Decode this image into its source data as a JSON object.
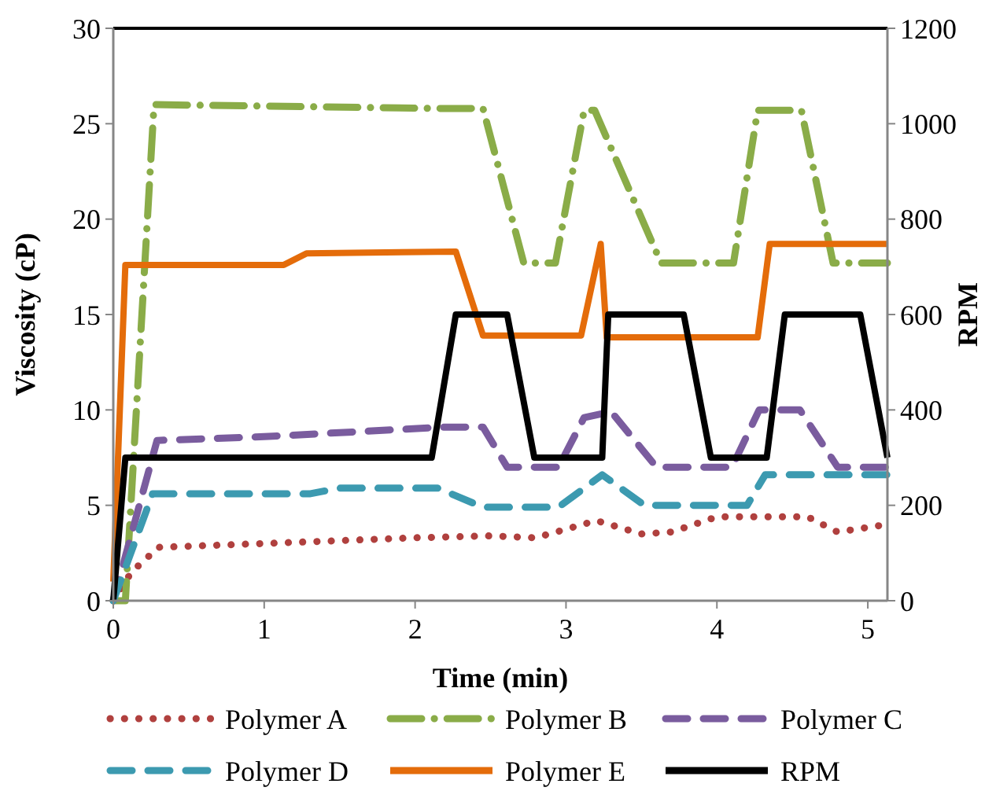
{
  "chart_data": {
    "type": "line",
    "xlabel": "Time (min)",
    "ylabel": "Viscosity (cP)",
    "y2label": "RPM",
    "xlim": [
      0,
      5.13
    ],
    "xticks": [
      0,
      1,
      2,
      3,
      4,
      5
    ],
    "ylim": [
      0,
      30
    ],
    "yticks": [
      0,
      5,
      10,
      15,
      20,
      25,
      30
    ],
    "y2lim": [
      0,
      1200
    ],
    "y2ticks": [
      0,
      200,
      400,
      600,
      800,
      1000,
      1200
    ],
    "grid": false,
    "legend": "bottom",
    "series": [
      {
        "name": "Polymer A",
        "color": "#b0403e",
        "line_style": "dotted",
        "x": [
          0,
          0.12,
          0.3,
          1,
          2,
          2.5,
          2.8,
          3.2,
          3.5,
          3.7,
          4,
          4.6,
          4.8,
          5.13
        ],
        "values": [
          0,
          1.5,
          2.8,
          3,
          3.3,
          3.4,
          3.3,
          4.2,
          3.5,
          3.6,
          4.4,
          4.4,
          3.6,
          4
        ]
      },
      {
        "name": "Polymer B",
        "color": "#8aac48",
        "line_style": "dashdot",
        "x": [
          0,
          0.08,
          0.27,
          2.15,
          2.45,
          2.72,
          2.93,
          3.12,
          3.19,
          3.63,
          4.11,
          4.27,
          4.56,
          4.77,
          5.13
        ],
        "values": [
          0,
          0,
          26,
          25.8,
          25.8,
          17.7,
          17.7,
          25.7,
          25.7,
          17.7,
          17.7,
          25.7,
          25.7,
          17.7,
          17.7
        ]
      },
      {
        "name": "Polymer C",
        "color": "#7a5c9e",
        "line_style": "dashed",
        "x": [
          0,
          0.29,
          1,
          2.2,
          2.45,
          2.61,
          2.95,
          3.12,
          3.3,
          3.6,
          4.1,
          4.28,
          4.55,
          4.8,
          5.13
        ],
        "values": [
          0,
          8.4,
          8.6,
          9.1,
          9.1,
          7,
          7,
          9.6,
          9.9,
          7,
          7,
          10,
          10,
          7,
          7
        ]
      },
      {
        "name": "Polymer D",
        "color": "#3c9ab0",
        "line_style": "dashed",
        "x": [
          0,
          0.26,
          1.3,
          1.5,
          2.15,
          2.45,
          2.95,
          3.24,
          3.52,
          4.2,
          4.32,
          5.13
        ],
        "values": [
          0,
          5.6,
          5.6,
          5.9,
          5.9,
          4.9,
          4.9,
          6.6,
          5,
          5,
          6.6,
          6.6
        ]
      },
      {
        "name": "Polymer E",
        "color": "#e46c0a",
        "line_style": "solid",
        "x": [
          0,
          0.08,
          1.13,
          1.28,
          2.27,
          2.45,
          3.1,
          3.23,
          3.27,
          4.27,
          4.35,
          5.13
        ],
        "values": [
          1,
          17.6,
          17.6,
          18.2,
          18.3,
          13.9,
          13.9,
          18.7,
          13.8,
          13.8,
          18.7,
          18.7
        ]
      },
      {
        "name": "RPM",
        "color": "#000000",
        "line_style": "solid",
        "axis": "y2",
        "x": [
          0,
          0.08,
          2.11,
          2.27,
          2.61,
          2.79,
          3.24,
          3.28,
          3.78,
          3.96,
          4.33,
          4.45,
          4.95,
          5.13
        ],
        "values": [
          0,
          300,
          300,
          600,
          600,
          300,
          300,
          600,
          600,
          300,
          300,
          600,
          600,
          300
        ]
      }
    ]
  }
}
